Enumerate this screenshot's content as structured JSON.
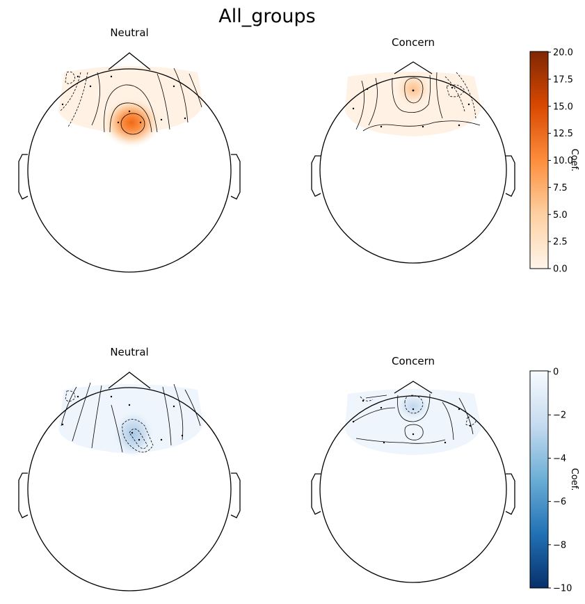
{
  "title": "All_groups",
  "chart_data": [
    {
      "type": "heatmap",
      "kind": "scalp topography",
      "title": "Neutral",
      "colormap": "Oranges",
      "clim": [
        0,
        20
      ],
      "hotspot_value": 14,
      "sign": "positive"
    },
    {
      "type": "heatmap",
      "kind": "scalp topography",
      "title": "Concern",
      "colormap": "Oranges",
      "clim": [
        0,
        20
      ],
      "hotspot_value": 6,
      "sign": "positive"
    },
    {
      "type": "heatmap",
      "kind": "scalp topography",
      "title": "Neutral",
      "colormap": "Blues_r",
      "clim": [
        -10,
        0
      ],
      "hotspot_value": -2.5,
      "sign": "negative"
    },
    {
      "type": "heatmap",
      "kind": "scalp topography",
      "title": "Concern",
      "colormap": "Blues_r",
      "clim": [
        -10,
        0
      ],
      "hotspot_value": -2,
      "sign": "negative"
    }
  ],
  "colorbars": [
    {
      "label": "Coef.",
      "ticks": [
        "20.0",
        "17.5",
        "15.0",
        "12.5",
        "10.0",
        "7.5",
        "5.0",
        "2.5",
        "0.0"
      ],
      "colors": [
        "#fff5eb",
        "#fdd0a2",
        "#fd8d3c",
        "#d94801",
        "#7f2704"
      ]
    },
    {
      "label": "Coef.",
      "ticks": [
        "0",
        "−2",
        "−4",
        "−6",
        "−8",
        "−10"
      ],
      "colors": [
        "#f7fbff",
        "#c6dbef",
        "#6baed6",
        "#2171b5",
        "#08306b"
      ]
    }
  ]
}
